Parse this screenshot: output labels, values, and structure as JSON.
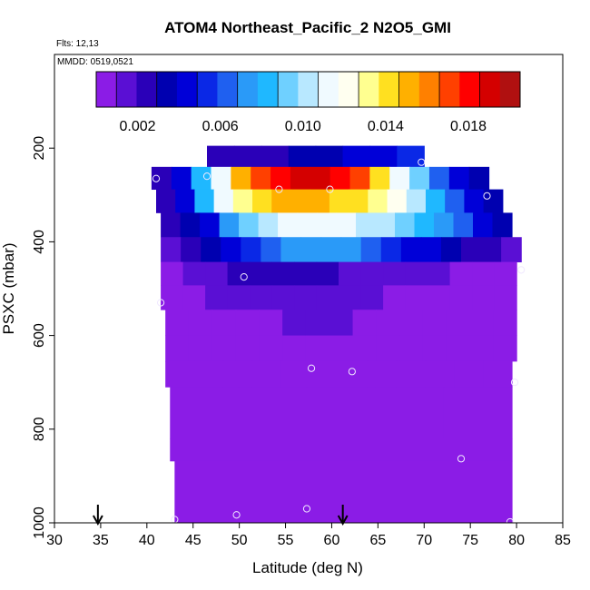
{
  "chart_data": {
    "type": "heatmap",
    "title": "ATOM4 Northeast_Pacific_2 N2O5_GMI",
    "info_lines": [
      "Flts: 12,13",
      "MMDD: 0519,0521"
    ],
    "xlabel": "Latitude (deg N)",
    "ylabel": "PSXC (mbar)",
    "xlim": [
      30,
      85
    ],
    "ylim": [
      1000,
      0
    ],
    "x_ticks": [
      "30",
      "35",
      "40",
      "45",
      "50",
      "55",
      "60",
      "65",
      "70",
      "75",
      "80",
      "85"
    ],
    "y_ticks": [
      "200",
      "400",
      "600",
      "800",
      "1000"
    ],
    "colorbar": {
      "range": [
        0,
        0.0205
      ],
      "tick_labels": [
        "0.002",
        "0.006",
        "0.010",
        "0.014",
        "0.018"
      ],
      "tick_values": [
        0.002,
        0.006,
        0.01,
        0.014,
        0.018
      ],
      "colors": [
        "#8b1ce6",
        "#5a0fd4",
        "#2a00b8",
        "#0000b0",
        "#0000d8",
        "#0a28e6",
        "#1f60f0",
        "#2a9af8",
        "#1fb8ff",
        "#6fd0ff",
        "#b8e8ff",
        "#f0faff",
        "#fffff0",
        "#ffff90",
        "#ffe020",
        "#ffb000",
        "#ff8000",
        "#ff4000",
        "#ff0000",
        "#d40000",
        "#b01010"
      ]
    },
    "layers": [
      {
        "p": [
          195,
          240
        ],
        "lat": [
          46.5,
          70.0
        ],
        "values": [
          0.0025,
          0.0025,
          0.0027,
          0.003,
          0.0035,
          0.004,
          0.0048,
          0.0058
        ]
      },
      {
        "p": [
          240,
          288
        ],
        "lat": [
          40.5,
          77.0
        ],
        "values": [
          0.002,
          0.0045,
          0.008,
          0.011,
          0.015,
          0.017,
          0.018,
          0.019,
          0.019,
          0.018,
          0.0175,
          0.014,
          0.011,
          0.009,
          0.0065,
          0.004,
          0.003
        ]
      },
      {
        "p": [
          288,
          338
        ],
        "lat": [
          41.0,
          78.5
        ],
        "values": [
          0.0025,
          0.004,
          0.008,
          0.011,
          0.013,
          0.0145,
          0.015,
          0.015,
          0.015,
          0.0145,
          0.014,
          0.013,
          0.012,
          0.0105,
          0.0085,
          0.0065,
          0.0045,
          0.003
        ]
      },
      {
        "p": [
          338,
          390
        ],
        "lat": [
          41.5,
          79.5
        ],
        "values": [
          0.0022,
          0.003,
          0.0045,
          0.007,
          0.0095,
          0.0105,
          0.011,
          0.011,
          0.011,
          0.011,
          0.0105,
          0.01,
          0.0095,
          0.0085,
          0.0075,
          0.006,
          0.0045,
          0.003
        ]
      },
      {
        "p": [
          390,
          443
        ],
        "lat": [
          41.5,
          80.5
        ],
        "values": [
          0.0015,
          0.002,
          0.003,
          0.004,
          0.0055,
          0.0065,
          0.007,
          0.007,
          0.007,
          0.007,
          0.0065,
          0.0055,
          0.0048,
          0.0042,
          0.0035,
          0.0028,
          0.0022,
          0.0018
        ]
      },
      {
        "p": [
          443,
          493
        ],
        "lat": [
          41.5,
          80.0
        ],
        "values": [
          0.0008,
          0.0012,
          0.0016,
          0.002,
          0.0025,
          0.0025,
          0.0022,
          0.002,
          0.0018,
          0.0016,
          0.0014,
          0.0012,
          0.001,
          0.0009,
          0.0008,
          0.0007
        ]
      },
      {
        "p": [
          493,
          545
        ],
        "lat": [
          41.5,
          80.0
        ],
        "values": [
          0.0007,
          0.0009,
          0.0011,
          0.0013,
          0.0016,
          0.0017,
          0.0016,
          0.0014,
          0.0012,
          0.001,
          0.0009,
          0.0008,
          0.0007,
          0.0006,
          0.0005,
          0.0005
        ]
      },
      {
        "p": [
          545,
          600
        ],
        "lat": [
          42.0,
          80.0
        ],
        "values": [
          0.0004,
          0.0005,
          0.0006,
          0.0007,
          0.0008,
          0.001,
          0.0011,
          0.001,
          0.0009,
          0.0007,
          0.0006,
          0.0005,
          0.0004,
          0.0004,
          0.0004
        ]
      },
      {
        "p": [
          600,
          655
        ],
        "lat": [
          42.0,
          80.0
        ],
        "values": [
          0.0003,
          0.0004,
          0.0004,
          0.0005,
          0.0006,
          0.0007,
          0.0008,
          0.0007,
          0.0006,
          0.0005,
          0.0004,
          0.0003,
          0.0003,
          0.0003,
          0.0003
        ]
      },
      {
        "p": [
          655,
          710
        ],
        "lat": [
          42.0,
          79.5
        ],
        "values": [
          0.0002,
          0.0002,
          0.0002,
          0.0002,
          0.0002,
          0.0002,
          0.0002,
          0.0002,
          0.0002,
          0.0002,
          0.0002,
          0.0002
        ]
      },
      {
        "p": [
          710,
          820
        ],
        "lat": [
          42.5,
          79.5
        ],
        "values": [
          0.0001,
          0.0001,
          0.0001,
          0.0001,
          0.0001
        ]
      },
      {
        "p": [
          820,
          868
        ],
        "lat": [
          42.5,
          79.5
        ],
        "values": [
          0.0001
        ]
      },
      {
        "p": [
          868,
          1000
        ],
        "lat": [
          43.0,
          79.5
        ],
        "values": [
          0.0001
        ]
      }
    ],
    "sample_points": [
      {
        "lat": 69.7,
        "p": 230
      },
      {
        "lat": 46.5,
        "p": 260
      },
      {
        "lat": 41.0,
        "p": 265
      },
      {
        "lat": 54.3,
        "p": 288
      },
      {
        "lat": 59.8,
        "p": 288
      },
      {
        "lat": 76.8,
        "p": 302
      },
      {
        "lat": 50.5,
        "p": 475
      },
      {
        "lat": 80.5,
        "p": 460
      },
      {
        "lat": 41.5,
        "p": 530
      },
      {
        "lat": 57.8,
        "p": 670
      },
      {
        "lat": 62.2,
        "p": 677
      },
      {
        "lat": 79.8,
        "p": 700
      },
      {
        "lat": 74.0,
        "p": 863
      },
      {
        "lat": 57.3,
        "p": 970
      },
      {
        "lat": 49.7,
        "p": 983
      },
      {
        "lat": 43.0,
        "p": 993
      },
      {
        "lat": 79.3,
        "p": 998
      }
    ],
    "arrows": [
      {
        "lat": 34.7
      },
      {
        "lat": 61.2
      }
    ],
    "grid": false,
    "legend": "colorbar-top"
  }
}
